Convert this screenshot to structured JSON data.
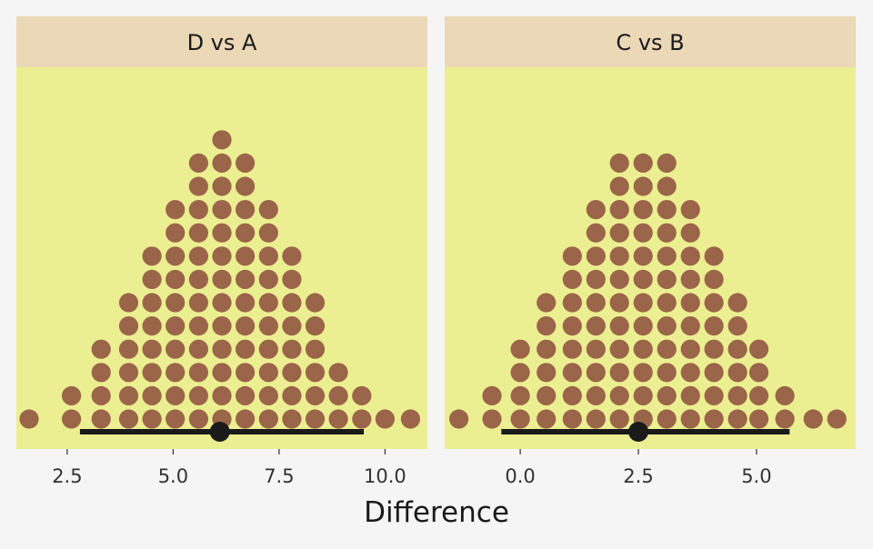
{
  "chart_data": {
    "type": "dotplot",
    "xlabel": "Difference",
    "colors": {
      "background": "#f5f5f5",
      "panel": "#ecef91",
      "strip": "#ebd8b7",
      "dot": "#9b6549",
      "interval": "#1a1a1a"
    },
    "panels": [
      {
        "title": "D vs A",
        "xlim": [
          1.3,
          11.0
        ],
        "x_ticks": [
          "2.5",
          "5.0",
          "7.5",
          "10.0"
        ],
        "x_tick_values": [
          2.5,
          5.0,
          7.5,
          10.0
        ],
        "dot_columns": [
          {
            "x": 1.6,
            "count": 1
          },
          {
            "x": 2.6,
            "count": 2
          },
          {
            "x": 3.3,
            "count": 4
          },
          {
            "x": 3.95,
            "count": 6
          },
          {
            "x": 4.5,
            "count": 8
          },
          {
            "x": 5.05,
            "count": 10
          },
          {
            "x": 5.6,
            "count": 12
          },
          {
            "x": 6.15,
            "count": 13
          },
          {
            "x": 6.7,
            "count": 12
          },
          {
            "x": 7.25,
            "count": 10
          },
          {
            "x": 7.8,
            "count": 8
          },
          {
            "x": 8.35,
            "count": 6
          },
          {
            "x": 8.9,
            "count": 3
          },
          {
            "x": 9.45,
            "count": 2
          },
          {
            "x": 10.0,
            "count": 1
          },
          {
            "x": 10.6,
            "count": 1
          }
        ],
        "interval": {
          "low": 2.8,
          "high": 9.5,
          "point": 6.1
        }
      },
      {
        "title": "C vs B",
        "xlim": [
          -1.6,
          7.1
        ],
        "x_ticks": [
          "0.0",
          "2.5",
          "5.0"
        ],
        "x_tick_values": [
          0.0,
          2.5,
          5.0
        ],
        "dot_columns": [
          {
            "x": -1.3,
            "count": 1
          },
          {
            "x": -0.6,
            "count": 2
          },
          {
            "x": 0.0,
            "count": 4
          },
          {
            "x": 0.55,
            "count": 6
          },
          {
            "x": 1.1,
            "count": 8
          },
          {
            "x": 1.6,
            "count": 10
          },
          {
            "x": 2.1,
            "count": 12
          },
          {
            "x": 2.6,
            "count": 12
          },
          {
            "x": 3.1,
            "count": 12
          },
          {
            "x": 3.6,
            "count": 10
          },
          {
            "x": 4.1,
            "count": 8
          },
          {
            "x": 4.6,
            "count": 6
          },
          {
            "x": 5.05,
            "count": 4
          },
          {
            "x": 5.6,
            "count": 2
          },
          {
            "x": 6.2,
            "count": 1
          },
          {
            "x": 6.7,
            "count": 1
          }
        ],
        "interval": {
          "low": -0.4,
          "high": 5.7,
          "point": 2.5
        }
      }
    ]
  }
}
